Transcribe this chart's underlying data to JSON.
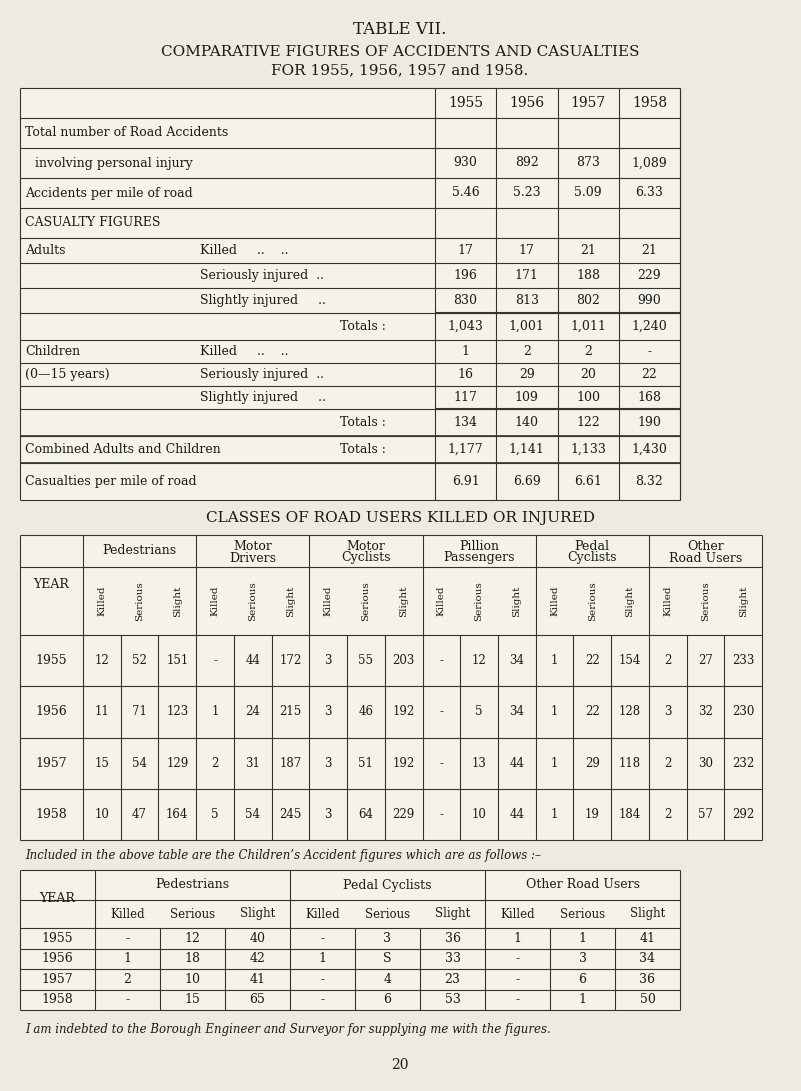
{
  "title1": "TABLE VII.",
  "title2": "COMPARATIVE FIGURES OF ACCIDENTS AND CASUALTIES",
  "title3": "FOR 1955, 1956, 1957 and 1958.",
  "bg_color": "#edeae0",
  "text_color": "#1a1a1a",
  "years": [
    "1955",
    "1956",
    "1957",
    "1958"
  ],
  "classes_title": "CLASSES OF ROAD USERS KILLED OR INJURED",
  "classes_headers": [
    "Pedestrians",
    "Motor\nDrivers",
    "Motor\nCyclists",
    "Pillion\nPassengers",
    "Pedal\nCyclists",
    "Other\nRoad Users"
  ],
  "classes_data": {
    "1955": [
      "12",
      "52",
      "151",
      "-",
      "44",
      "172",
      "3",
      "55",
      "203",
      "-",
      "12",
      "34",
      "1",
      "22",
      "154",
      "2",
      "27",
      "233"
    ],
    "1956": [
      "11",
      "71",
      "123",
      "1",
      "24",
      "215",
      "3",
      "46",
      "192",
      "-",
      "5",
      "34",
      "1",
      "22",
      "128",
      "3",
      "32",
      "230"
    ],
    "1957": [
      "15",
      "54",
      "129",
      "2",
      "31",
      "187",
      "3",
      "51",
      "192",
      "-",
      "13",
      "44",
      "1",
      "29",
      "118",
      "2",
      "30",
      "232"
    ],
    "1958": [
      "10",
      "47",
      "164",
      "5",
      "54",
      "245",
      "3",
      "64",
      "229",
      "-",
      "10",
      "44",
      "1",
      "19",
      "184",
      "2",
      "57",
      "292"
    ]
  },
  "children_note": "Included in the above table are the Children’s Accident figures which are as follows :–",
  "children_headers": [
    "Pedestrians",
    "Pedal Cyclists",
    "Other Road Users"
  ],
  "children_sub_headers": [
    "Killed",
    "Serious",
    "Slight"
  ],
  "children_data": {
    "1955": [
      "-",
      "12",
      "40",
      "-",
      "3",
      "36",
      "1",
      "1",
      "41"
    ],
    "1956": [
      "1",
      "18",
      "42",
      "1",
      "S",
      "33",
      "-",
      "3",
      "34"
    ],
    "1957": [
      "2",
      "10",
      "41",
      "-",
      "4",
      "23",
      "-",
      "6",
      "36"
    ],
    "1958": [
      "-",
      "15",
      "65",
      "-",
      "6",
      "53",
      "-",
      "1",
      "50"
    ]
  },
  "footer": "I am indebted to the Borough Engineer and Surveyor for supplying me with the figures.",
  "page_number": "20",
  "top_rows": [
    {
      "label1": "Total number of Road Accidents",
      "label2": "  involving personal injury",
      "v1": "930",
      "v2": "892",
      "v3": "873",
      "v4": "1,089",
      "two_line": true
    },
    {
      "label1": "Accidents per mile of road",
      "v1": "5.46",
      "v2": "5.23",
      "v3": "5.09",
      "v4": "6.33"
    },
    {
      "label1": "CASUALTY FIGURES",
      "section_header": true
    },
    {
      "label1": "Adults",
      "sub": "Killed     ..    ..",
      "v1": "17",
      "v2": "17",
      "v3": "21",
      "v4": "21"
    },
    {
      "sub": "Seriously injured  ..",
      "v1": "196",
      "v2": "171",
      "v3": "188",
      "v4": "229"
    },
    {
      "sub": "Slightly injured     ..",
      "v1": "830",
      "v2": "813",
      "v3": "802",
      "v4": "990"
    },
    {
      "totals": "Totals :",
      "v1": "1,043",
      "v2": "1,001",
      "v3": "1,011",
      "v4": "1,240",
      "thick_top": true
    },
    {
      "label1": "Children",
      "sub": "Killed     ..    ..",
      "v1": "1",
      "v2": "2",
      "v3": "2",
      "v4": "-"
    },
    {
      "label1": "(0—15 years)",
      "sub": "Seriously injured  ..",
      "v1": "16",
      "v2": "29",
      "v3": "20",
      "v4": "22"
    },
    {
      "sub": "Slightly injured     ..",
      "v1": "117",
      "v2": "109",
      "v3": "100",
      "v4": "168"
    },
    {
      "totals": "Totals :",
      "v1": "134",
      "v2": "140",
      "v3": "122",
      "v4": "190",
      "thick_top": true
    },
    {
      "label1": "Combined Adults and Children",
      "totals": "Totals :",
      "v1": "1,177",
      "v2": "1,141",
      "v3": "1,133",
      "v4": "1,430"
    },
    {
      "label1": "Casualties per mile of road",
      "v1": "6.91",
      "v2": "6.69",
      "v3": "6.61",
      "v4": "8.32"
    }
  ]
}
